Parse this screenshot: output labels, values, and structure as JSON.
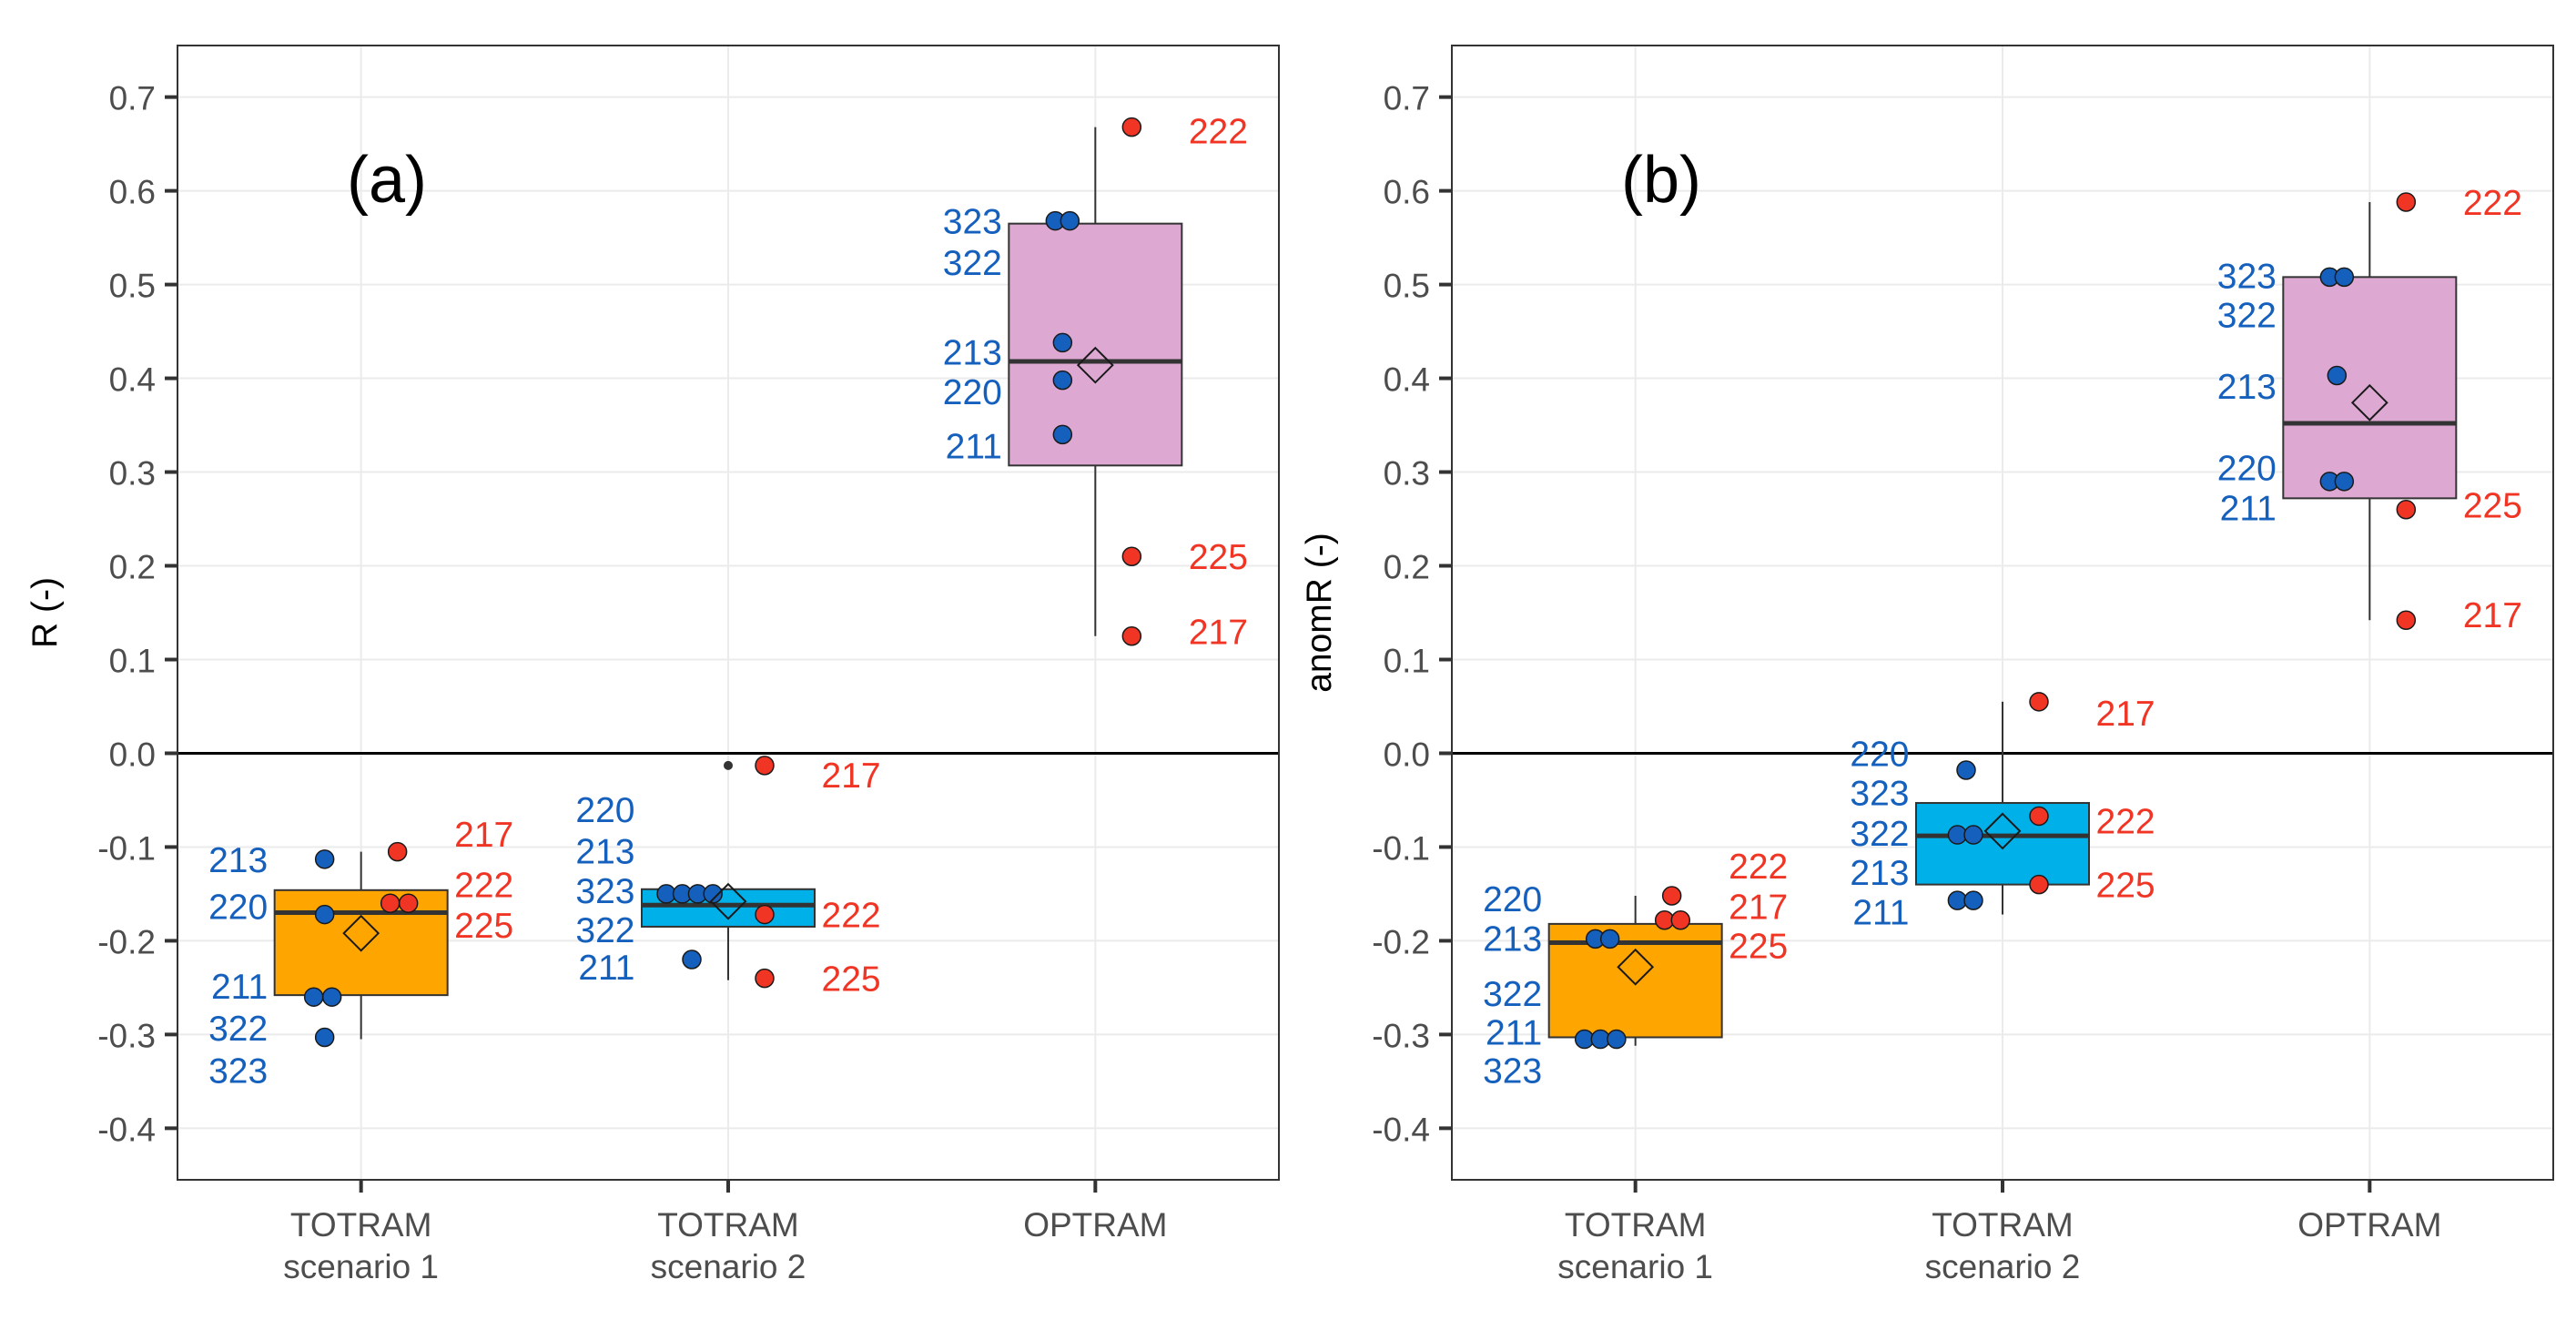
{
  "colors": {
    "s1_box": "#FFA500",
    "s2_box": "#00B0E8",
    "opt_box": "#DDA8D2",
    "blue_point": "#1560BD",
    "red_point": "#F03525",
    "blue_label": "#1560BD",
    "red_label": "#F03525",
    "median": "#333333",
    "axis_text": "#4D4D4D"
  },
  "chart_data": [
    {
      "type": "box",
      "panel_label": "(a)",
      "ylabel": "R (-)",
      "ylim": [
        -0.455,
        0.755
      ],
      "yticks": [
        {
          "value": 0.7,
          "label": "0.7"
        },
        {
          "value": 0.6,
          "label": "0.6"
        },
        {
          "value": 0.5,
          "label": "0.5"
        },
        {
          "value": 0.4,
          "label": "0.4"
        },
        {
          "value": 0.3,
          "label": "0.3"
        },
        {
          "value": 0.2,
          "label": "0.2"
        },
        {
          "value": 0.1,
          "label": "0.1"
        },
        {
          "value": 0.0,
          "label": "0.0"
        },
        {
          "value": -0.1,
          "label": "-0.1"
        },
        {
          "value": -0.2,
          "label": "-0.2"
        },
        {
          "value": -0.3,
          "label": "-0.3"
        },
        {
          "value": -0.4,
          "label": "-0.4"
        }
      ],
      "categories": [
        {
          "line1": "TOTRAM",
          "line2": "scenario 1",
          "box_color": "s1_box",
          "q1": -0.258,
          "median": -0.17,
          "q3": -0.146,
          "whisker_low": -0.305,
          "whisker_high": -0.105,
          "mean": -0.192,
          "outliers": [],
          "points": [
            {
              "group": "blue",
              "y": -0.113,
              "dx": -0.5
            },
            {
              "group": "blue",
              "y": -0.172,
              "dx": -0.5
            },
            {
              "group": "blue",
              "y": -0.26,
              "dx": -0.65
            },
            {
              "group": "blue",
              "y": -0.26,
              "dx": -0.4
            },
            {
              "group": "blue",
              "y": -0.303,
              "dx": -0.5
            },
            {
              "group": "red",
              "y": -0.105,
              "dx": 0.5
            },
            {
              "group": "red",
              "y": -0.16,
              "dx": 0.4
            },
            {
              "group": "red",
              "y": -0.16,
              "dx": 0.65
            }
          ],
          "labels": [
            {
              "group": "blue",
              "text": "213",
              "y": -0.113
            },
            {
              "group": "blue",
              "text": "220",
              "y": -0.163
            },
            {
              "group": "blue",
              "text": "211",
              "y": -0.248
            },
            {
              "group": "blue",
              "text": "322",
              "y": -0.293
            },
            {
              "group": "blue",
              "text": "323",
              "y": -0.338
            },
            {
              "group": "red",
              "text": "217",
              "y": -0.086
            },
            {
              "group": "red",
              "text": "222",
              "y": -0.14
            },
            {
              "group": "red",
              "text": "225",
              "y": -0.183
            }
          ]
        },
        {
          "line1": "TOTRAM",
          "line2": "scenario 2",
          "box_color": "s2_box",
          "q1": -0.185,
          "median": -0.162,
          "q3": -0.145,
          "whisker_low": -0.242,
          "whisker_high": -0.145,
          "mean": -0.158,
          "outliers": [
            -0.013
          ],
          "points": [
            {
              "group": "blue",
              "y": -0.15,
              "dx": -0.85
            },
            {
              "group": "blue",
              "y": -0.15,
              "dx": -0.63
            },
            {
              "group": "blue",
              "y": -0.15,
              "dx": -0.42
            },
            {
              "group": "blue",
              "y": -0.15,
              "dx": -0.21
            },
            {
              "group": "blue",
              "y": -0.22,
              "dx": -0.5
            },
            {
              "group": "red",
              "y": -0.013,
              "dx": 0.5
            },
            {
              "group": "red",
              "y": -0.172,
              "dx": 0.5
            },
            {
              "group": "red",
              "y": -0.24,
              "dx": 0.5
            }
          ],
          "labels": [
            {
              "group": "blue",
              "text": "220",
              "y": -0.06
            },
            {
              "group": "blue",
              "text": "213",
              "y": -0.104
            },
            {
              "group": "blue",
              "text": "323",
              "y": -0.146
            },
            {
              "group": "blue",
              "text": "322",
              "y": -0.188
            },
            {
              "group": "blue",
              "text": "211",
              "y": -0.228
            },
            {
              "group": "red",
              "text": "217",
              "y": -0.023
            },
            {
              "group": "red",
              "text": "222",
              "y": -0.172
            },
            {
              "group": "red",
              "text": "225",
              "y": -0.24
            }
          ]
        },
        {
          "line1": "OPTRAM",
          "line2": "",
          "box_color": "opt_box",
          "q1": 0.307,
          "median": 0.418,
          "q3": 0.565,
          "whisker_low": 0.125,
          "whisker_high": 0.668,
          "mean": 0.414,
          "outliers": [],
          "points": [
            {
              "group": "blue",
              "y": 0.568,
              "dx": -0.55
            },
            {
              "group": "blue",
              "y": 0.568,
              "dx": -0.35
            },
            {
              "group": "blue",
              "y": 0.438,
              "dx": -0.45
            },
            {
              "group": "blue",
              "y": 0.398,
              "dx": -0.45
            },
            {
              "group": "blue",
              "y": 0.34,
              "dx": -0.45
            },
            {
              "group": "red",
              "y": 0.668,
              "dx": 0.5
            },
            {
              "group": "red",
              "y": 0.21,
              "dx": 0.5
            },
            {
              "group": "red",
              "y": 0.125,
              "dx": 0.5
            }
          ],
          "labels": [
            {
              "group": "blue",
              "text": "323",
              "y": 0.568
            },
            {
              "group": "blue",
              "text": "322",
              "y": 0.524
            },
            {
              "group": "blue",
              "text": "213",
              "y": 0.428
            },
            {
              "group": "blue",
              "text": "220",
              "y": 0.386
            },
            {
              "group": "blue",
              "text": "211",
              "y": 0.328
            },
            {
              "group": "red",
              "text": "222",
              "y": 0.664
            },
            {
              "group": "red",
              "text": "225",
              "y": 0.21
            },
            {
              "group": "red",
              "text": "217",
              "y": 0.13
            }
          ]
        }
      ]
    },
    {
      "type": "box",
      "panel_label": "(b)",
      "ylabel": "anomR (-)",
      "ylim": [
        -0.455,
        0.755
      ],
      "yticks": [
        {
          "value": 0.7,
          "label": "0.7"
        },
        {
          "value": 0.6,
          "label": "0.6"
        },
        {
          "value": 0.5,
          "label": "0.5"
        },
        {
          "value": 0.4,
          "label": "0.4"
        },
        {
          "value": 0.3,
          "label": "0.3"
        },
        {
          "value": 0.2,
          "label": "0.2"
        },
        {
          "value": 0.1,
          "label": "0.1"
        },
        {
          "value": 0.0,
          "label": "0.0"
        },
        {
          "value": -0.1,
          "label": "-0.1"
        },
        {
          "value": -0.2,
          "label": "-0.2"
        },
        {
          "value": -0.3,
          "label": "-0.3"
        },
        {
          "value": -0.4,
          "label": "-0.4"
        }
      ],
      "categories": [
        {
          "line1": "TOTRAM",
          "line2": "scenario 1",
          "box_color": "s1_box",
          "q1": -0.303,
          "median": -0.202,
          "q3": -0.182,
          "whisker_low": -0.312,
          "whisker_high": -0.152,
          "mean": -0.228,
          "outliers": [],
          "points": [
            {
              "group": "blue",
              "y": -0.198,
              "dx": -0.55
            },
            {
              "group": "blue",
              "y": -0.198,
              "dx": -0.35
            },
            {
              "group": "blue",
              "y": -0.305,
              "dx": -0.7
            },
            {
              "group": "blue",
              "y": -0.305,
              "dx": -0.48
            },
            {
              "group": "blue",
              "y": -0.305,
              "dx": -0.26
            },
            {
              "group": "red",
              "y": -0.152,
              "dx": 0.5
            },
            {
              "group": "red",
              "y": -0.178,
              "dx": 0.4
            },
            {
              "group": "red",
              "y": -0.178,
              "dx": 0.62
            }
          ],
          "labels": [
            {
              "group": "blue",
              "text": "220",
              "y": -0.155
            },
            {
              "group": "blue",
              "text": "213",
              "y": -0.197
            },
            {
              "group": "blue",
              "text": "322",
              "y": -0.256
            },
            {
              "group": "blue",
              "text": "211",
              "y": -0.297
            },
            {
              "group": "blue",
              "text": "323",
              "y": -0.338
            },
            {
              "group": "red",
              "text": "222",
              "y": -0.12
            },
            {
              "group": "red",
              "text": "217",
              "y": -0.163
            },
            {
              "group": "red",
              "text": "225",
              "y": -0.205
            }
          ]
        },
        {
          "line1": "TOTRAM",
          "line2": "scenario 2",
          "box_color": "s2_box",
          "q1": -0.14,
          "median": -0.088,
          "q3": -0.053,
          "whisker_low": -0.172,
          "whisker_high": 0.055,
          "mean": -0.083,
          "outliers": [],
          "points": [
            {
              "group": "blue",
              "y": -0.018,
              "dx": -0.5
            },
            {
              "group": "blue",
              "y": -0.087,
              "dx": -0.62
            },
            {
              "group": "blue",
              "y": -0.087,
              "dx": -0.4
            },
            {
              "group": "blue",
              "y": -0.157,
              "dx": -0.62
            },
            {
              "group": "blue",
              "y": -0.157,
              "dx": -0.4
            },
            {
              "group": "red",
              "y": 0.055,
              "dx": 0.5
            },
            {
              "group": "red",
              "y": -0.067,
              "dx": 0.5
            },
            {
              "group": "red",
              "y": -0.14,
              "dx": 0.5
            }
          ],
          "labels": [
            {
              "group": "blue",
              "text": "220",
              "y": 0.0
            },
            {
              "group": "blue",
              "text": "323",
              "y": -0.042
            },
            {
              "group": "blue",
              "text": "322",
              "y": -0.085
            },
            {
              "group": "blue",
              "text": "213",
              "y": -0.127
            },
            {
              "group": "blue",
              "text": "211",
              "y": -0.169
            },
            {
              "group": "red",
              "text": "217",
              "y": 0.043
            },
            {
              "group": "red",
              "text": "222",
              "y": -0.072
            },
            {
              "group": "red",
              "text": "225",
              "y": -0.14
            }
          ]
        },
        {
          "line1": "OPTRAM",
          "line2": "",
          "box_color": "opt_box",
          "q1": 0.272,
          "median": 0.352,
          "q3": 0.508,
          "whisker_low": 0.142,
          "whisker_high": 0.588,
          "mean": 0.374,
          "outliers": [],
          "points": [
            {
              "group": "blue",
              "y": 0.508,
              "dx": -0.55
            },
            {
              "group": "blue",
              "y": 0.508,
              "dx": -0.35
            },
            {
              "group": "blue",
              "y": 0.403,
              "dx": -0.45
            },
            {
              "group": "blue",
              "y": 0.29,
              "dx": -0.55
            },
            {
              "group": "blue",
              "y": 0.29,
              "dx": -0.35
            },
            {
              "group": "red",
              "y": 0.588,
              "dx": 0.5
            },
            {
              "group": "red",
              "y": 0.26,
              "dx": 0.5
            },
            {
              "group": "red",
              "y": 0.142,
              "dx": 0.5
            }
          ],
          "labels": [
            {
              "group": "blue",
              "text": "323",
              "y": 0.51
            },
            {
              "group": "blue",
              "text": "322",
              "y": 0.468
            },
            {
              "group": "blue",
              "text": "213",
              "y": 0.392
            },
            {
              "group": "blue",
              "text": "220",
              "y": 0.305
            },
            {
              "group": "blue",
              "text": "211",
              "y": 0.262
            },
            {
              "group": "red",
              "text": "222",
              "y": 0.588
            },
            {
              "group": "red",
              "text": "225",
              "y": 0.265
            },
            {
              "group": "red",
              "text": "217",
              "y": 0.148
            }
          ]
        }
      ]
    }
  ]
}
